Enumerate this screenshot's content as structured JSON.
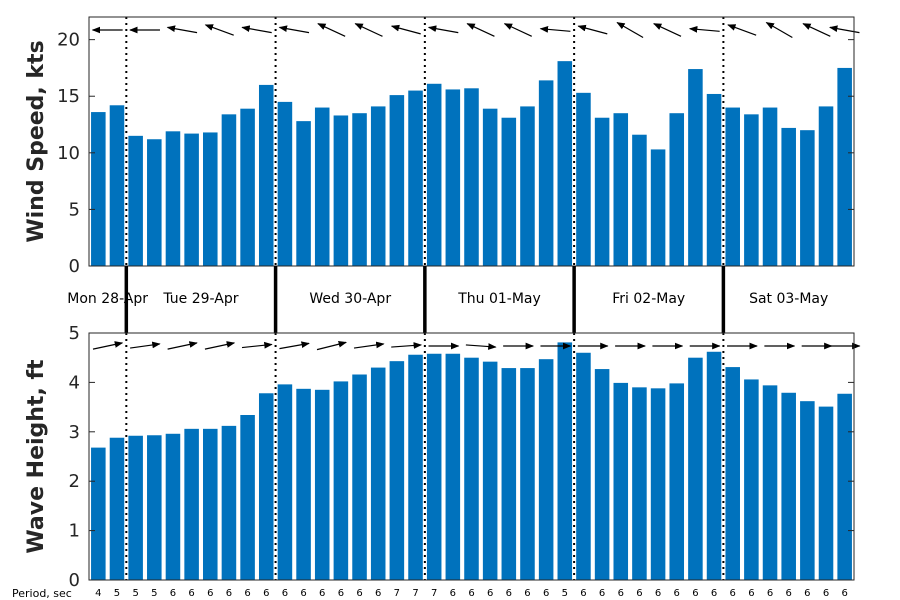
{
  "chart_data": [
    {
      "type": "bar",
      "ylabel": "Wind Speed, kts",
      "ylim": [
        0,
        22
      ],
      "yticks": [
        0,
        5,
        10,
        15,
        20
      ],
      "values": [
        13.6,
        14.2,
        11.5,
        11.2,
        11.9,
        11.7,
        11.8,
        13.4,
        13.9,
        16.0,
        14.5,
        12.8,
        14.0,
        13.3,
        13.5,
        14.1,
        15.1,
        15.5,
        16.1,
        15.6,
        15.7,
        13.9,
        13.1,
        14.1,
        16.4,
        18.1,
        15.3,
        13.1,
        13.5,
        11.6,
        10.3,
        13.5,
        17.4,
        15.2,
        14.0,
        13.4,
        14.0,
        12.2,
        12.0,
        14.1,
        17.5
      ],
      "arrow_direction_deg": [
        180,
        180,
        180,
        185,
        190,
        195,
        200,
        195,
        190,
        180,
        190,
        200,
        205,
        200,
        205,
        200,
        195,
        185,
        190,
        200,
        205,
        210,
        205,
        195,
        185,
        180,
        195,
        205,
        210,
        215,
        205,
        195,
        185,
        180,
        200,
        205,
        210,
        215,
        205,
        195,
        190
      ],
      "bar_color": "#0072bd",
      "grid": false
    },
    {
      "type": "bar",
      "ylabel": "Wave Height, ft",
      "ylim": [
        0,
        5
      ],
      "yticks": [
        0,
        1,
        2,
        3,
        4,
        5
      ],
      "values": [
        2.68,
        2.88,
        2.92,
        2.93,
        2.96,
        3.06,
        3.06,
        3.12,
        3.34,
        3.78,
        3.96,
        3.87,
        3.85,
        4.02,
        4.16,
        4.3,
        4.43,
        4.56,
        4.58,
        4.58,
        4.5,
        4.42,
        4.29,
        4.29,
        4.47,
        4.81,
        4.6,
        4.27,
        3.99,
        3.9,
        3.88,
        3.98,
        4.5,
        4.62,
        4.31,
        4.06,
        3.94,
        3.79,
        3.62,
        3.51,
        3.77
      ],
      "arrow_direction_deg": [
        -12,
        -10,
        -8,
        -10,
        -12,
        -10,
        -12,
        -8,
        -6,
        -4,
        -10,
        -12,
        -14,
        -10,
        -8,
        -6,
        -4,
        -2,
        0,
        2,
        4,
        2,
        0,
        0,
        0,
        0,
        0,
        0,
        0,
        0,
        0,
        0,
        0,
        0,
        0,
        0,
        0,
        0,
        0,
        0,
        0
      ],
      "bar_color": "#0072bd",
      "grid": false
    }
  ],
  "days": [
    "Mon 28-Apr",
    "Tue 29-Apr",
    "Wed 30-Apr",
    "Thu 01-May",
    "Fri 02-May",
    "Sat 03-May"
  ],
  "day_start_index": [
    0,
    2,
    10,
    18,
    26,
    34
  ],
  "period_caption": "Period, sec",
  "periods": [
    "4",
    "5",
    "5",
    "5",
    "6",
    "6",
    "6",
    "6",
    "6",
    "6",
    "6",
    "6",
    "6",
    "6",
    "6",
    "6",
    "7",
    "7",
    "7",
    "6",
    "6",
    "6",
    "6",
    "6",
    "6",
    "5",
    "6",
    "6",
    "6",
    "6",
    "6",
    "6",
    "6",
    "6",
    "6",
    "6",
    "6",
    "6",
    "6",
    "6",
    "6"
  ]
}
